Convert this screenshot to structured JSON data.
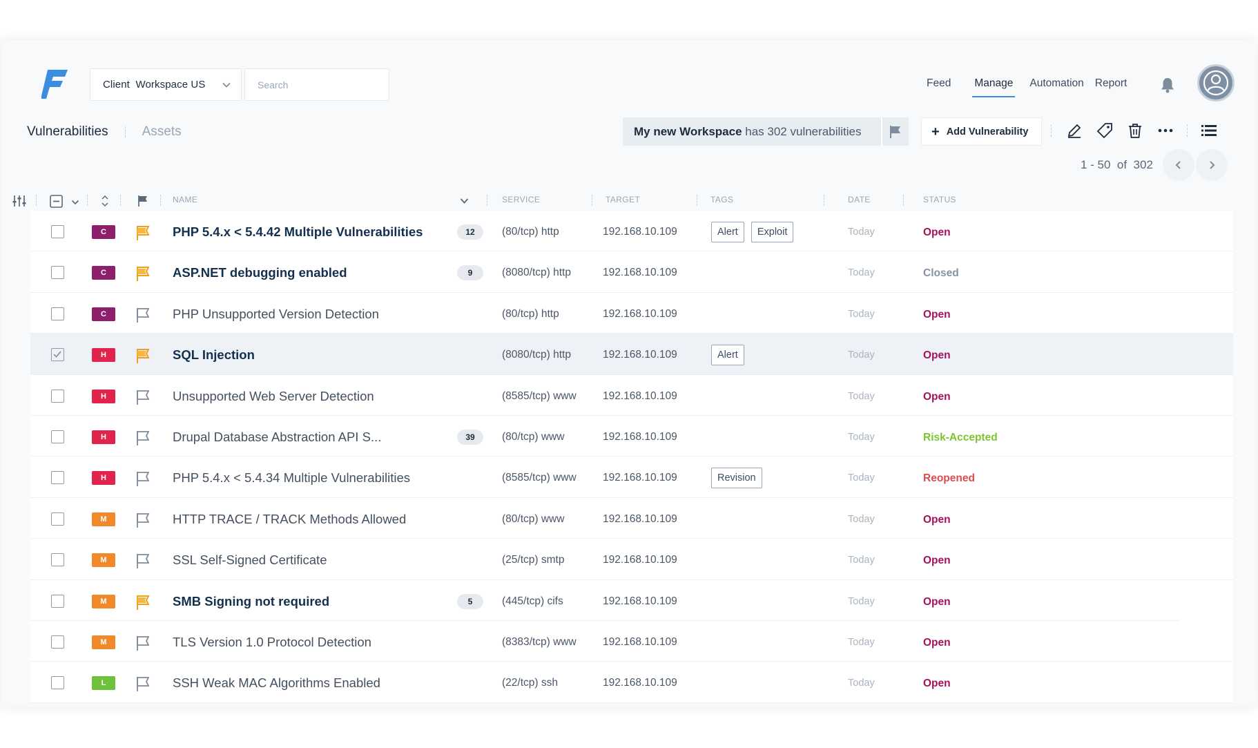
{
  "header": {
    "workspace_select": {
      "value": "Client  Workspace US"
    },
    "search": {
      "placeholder": "Search"
    },
    "nav": [
      {
        "label": "Feed",
        "active": false
      },
      {
        "label": "Manage",
        "active": true
      },
      {
        "label": "Automation",
        "active": false
      },
      {
        "label": "Report",
        "active": false
      }
    ],
    "icons": {
      "logo": "faraday-logo",
      "bell": "bell-icon",
      "avatar": "user-avatar-icon"
    },
    "colors": {
      "accent": "#3b8de0",
      "logo": "#3b8de0"
    }
  },
  "subheader": {
    "tabs": [
      {
        "label": "Vulnerabilities",
        "active": true
      },
      {
        "label": "Assets",
        "active": false
      }
    ],
    "banner": {
      "workspace": "My new Workspace",
      "text": "has 302 vulnerabilities"
    },
    "add_button": "Add Vulnerability",
    "toolbar_icons": [
      "pencil-icon",
      "tag-icon",
      "trash-icon",
      "more-icon",
      "list-view-icon"
    ],
    "pagination": {
      "range": "1 - 50  of  302"
    }
  },
  "table": {
    "columns": [
      "NAME",
      "SERVICE",
      "TARGET",
      "TAGS",
      "DATE",
      "STATUS"
    ],
    "severity_colors": {
      "C": "#8e1f6c",
      "H": "#e0244b",
      "M": "#f0892a",
      "L": "#6cc23a"
    },
    "status_colors": {
      "Open": "#a3125e",
      "Closed": "#8593a3",
      "Risk-Accepted": "#7cc42e",
      "Reopened": "#e04b4b"
    },
    "rows": [
      {
        "severity": "C",
        "flagged": true,
        "name": "PHP 5.4.x < 5.4.42 Multiple Vulnerabilities",
        "bold": true,
        "count": "12",
        "service": "(80/tcp) http",
        "target": "192.168.10.109",
        "tags": [
          "Alert",
          "Exploit"
        ],
        "date": "Today",
        "status": "Open",
        "selected": false
      },
      {
        "severity": "C",
        "flagged": true,
        "name": "ASP.NET debugging enabled",
        "bold": true,
        "count": "9",
        "service": "(8080/tcp) http",
        "target": "192.168.10.109",
        "tags": [],
        "date": "Today",
        "status": "Closed",
        "selected": false
      },
      {
        "severity": "C",
        "flagged": false,
        "name": "PHP Unsupported Version Detection",
        "bold": false,
        "count": "",
        "service": "(80/tcp) http",
        "target": "192.168.10.109",
        "tags": [],
        "date": "Today",
        "status": "Open",
        "selected": false
      },
      {
        "severity": "H",
        "flagged": true,
        "name": "SQL Injection",
        "bold": true,
        "count": "",
        "service": "(8080/tcp) http",
        "target": "192.168.10.109",
        "tags": [
          "Alert"
        ],
        "date": "Today",
        "status": "Open",
        "selected": true
      },
      {
        "severity": "H",
        "flagged": false,
        "name": "Unsupported Web Server Detection",
        "bold": false,
        "count": "",
        "service": "(8585/tcp) www",
        "target": "192.168.10.109",
        "tags": [],
        "date": "Today",
        "status": "Open",
        "selected": false
      },
      {
        "severity": "H",
        "flagged": false,
        "name": "Drupal Database Abstraction API S...",
        "bold": false,
        "count": "39",
        "service": "(80/tcp) www",
        "target": "192.168.10.109",
        "tags": [],
        "date": "Today",
        "status": "Risk-Accepted",
        "selected": false
      },
      {
        "severity": "H",
        "flagged": false,
        "name": "PHP 5.4.x < 5.4.34 Multiple Vulnerabilities",
        "bold": false,
        "count": "",
        "service": "(8585/tcp) www",
        "target": "192.168.10.109",
        "tags": [
          "Revision"
        ],
        "date": "Today",
        "status": "Reopened",
        "selected": false
      },
      {
        "severity": "M",
        "flagged": false,
        "name": "HTTP TRACE / TRACK Methods Allowed",
        "bold": false,
        "count": "",
        "service": "(80/tcp) www",
        "target": "192.168.10.109",
        "tags": [],
        "date": "Today",
        "status": "Open",
        "selected": false
      },
      {
        "severity": "M",
        "flagged": false,
        "name": "SSL Self-Signed Certificate",
        "bold": false,
        "count": "",
        "service": "(25/tcp) smtp",
        "target": "192.168.10.109",
        "tags": [],
        "date": "Today",
        "status": "Open",
        "selected": false
      },
      {
        "severity": "M",
        "flagged": true,
        "name": "SMB Signing not required",
        "bold": true,
        "count": "5",
        "service": "(445/tcp) cifs",
        "target": "192.168.10.109",
        "tags": [],
        "date": "Today",
        "status": "Open",
        "selected": false
      },
      {
        "severity": "M",
        "flagged": false,
        "name": "TLS Version 1.0 Protocol Detection",
        "bold": false,
        "count": "",
        "service": "(8383/tcp) www",
        "target": "192.168.10.109",
        "tags": [],
        "date": "Today",
        "status": "Open",
        "selected": false
      },
      {
        "severity": "L",
        "flagged": false,
        "name": "SSH Weak MAC Algorithms Enabled",
        "bold": false,
        "count": "",
        "service": "(22/tcp) ssh",
        "target": "192.168.10.109",
        "tags": [],
        "date": "Today",
        "status": "Open",
        "selected": false
      }
    ]
  }
}
